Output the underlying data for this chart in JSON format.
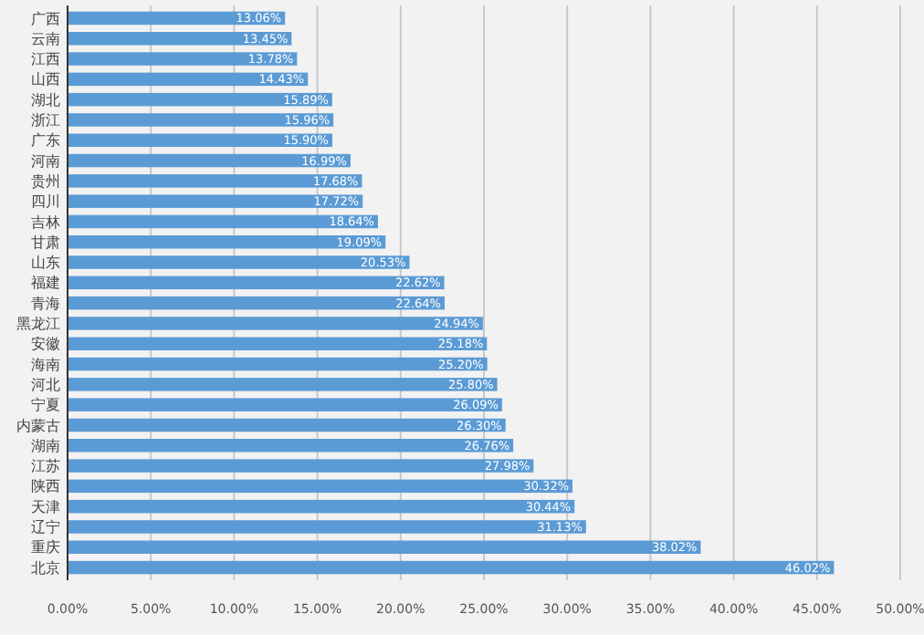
{
  "chart_data": {
    "type": "bar",
    "orientation": "horizontal",
    "categories": [
      "广西",
      "云南",
      "江西",
      "山西",
      "湖北",
      "浙江",
      "广东",
      "河南",
      "贵州",
      "四川",
      "吉林",
      "甘肃",
      "山东",
      "福建",
      "青海",
      "黑龙江",
      "安徽",
      "海南",
      "河北",
      "宁夏",
      "内蒙古",
      "湖南",
      "江苏",
      "陕西",
      "天津",
      "辽宁",
      "重庆",
      "北京"
    ],
    "values": [
      13.06,
      13.45,
      13.78,
      14.43,
      15.89,
      15.96,
      15.9,
      16.99,
      17.68,
      17.72,
      18.64,
      19.09,
      20.53,
      22.62,
      22.64,
      24.94,
      25.18,
      25.2,
      25.8,
      26.09,
      26.3,
      26.76,
      27.98,
      30.32,
      30.44,
      31.13,
      38.02,
      46.02
    ],
    "value_labels": [
      "13.06%",
      "13.45%",
      "13.78%",
      "14.43%",
      "15.89%",
      "15.96%",
      "15.90%",
      "16.99%",
      "17.68%",
      "17.72%",
      "18.64%",
      "19.09%",
      "20.53%",
      "22.62%",
      "22.64%",
      "24.94%",
      "25.18%",
      "25.20%",
      "25.80%",
      "26.09%",
      "26.30%",
      "26.76%",
      "27.98%",
      "30.32%",
      "30.44%",
      "31.13%",
      "38.02%",
      "46.02%"
    ],
    "color": "#5b9bd5",
    "xlim": [
      0,
      50
    ],
    "xticks": [
      {
        "value": 0,
        "label": "0.00%"
      },
      {
        "value": 5,
        "label": "5.00%"
      },
      {
        "value": 10,
        "label": "10.00%"
      },
      {
        "value": 15,
        "label": "15.00%"
      },
      {
        "value": 20,
        "label": "20.00%"
      },
      {
        "value": 25,
        "label": "25.00%"
      },
      {
        "value": 30,
        "label": "30.00%"
      },
      {
        "value": 35,
        "label": "35.00%"
      },
      {
        "value": 40,
        "label": "40.00%"
      },
      {
        "value": 45,
        "label": "45.00%"
      },
      {
        "value": 50,
        "label": "50.00%"
      }
    ],
    "grid": "x"
  }
}
